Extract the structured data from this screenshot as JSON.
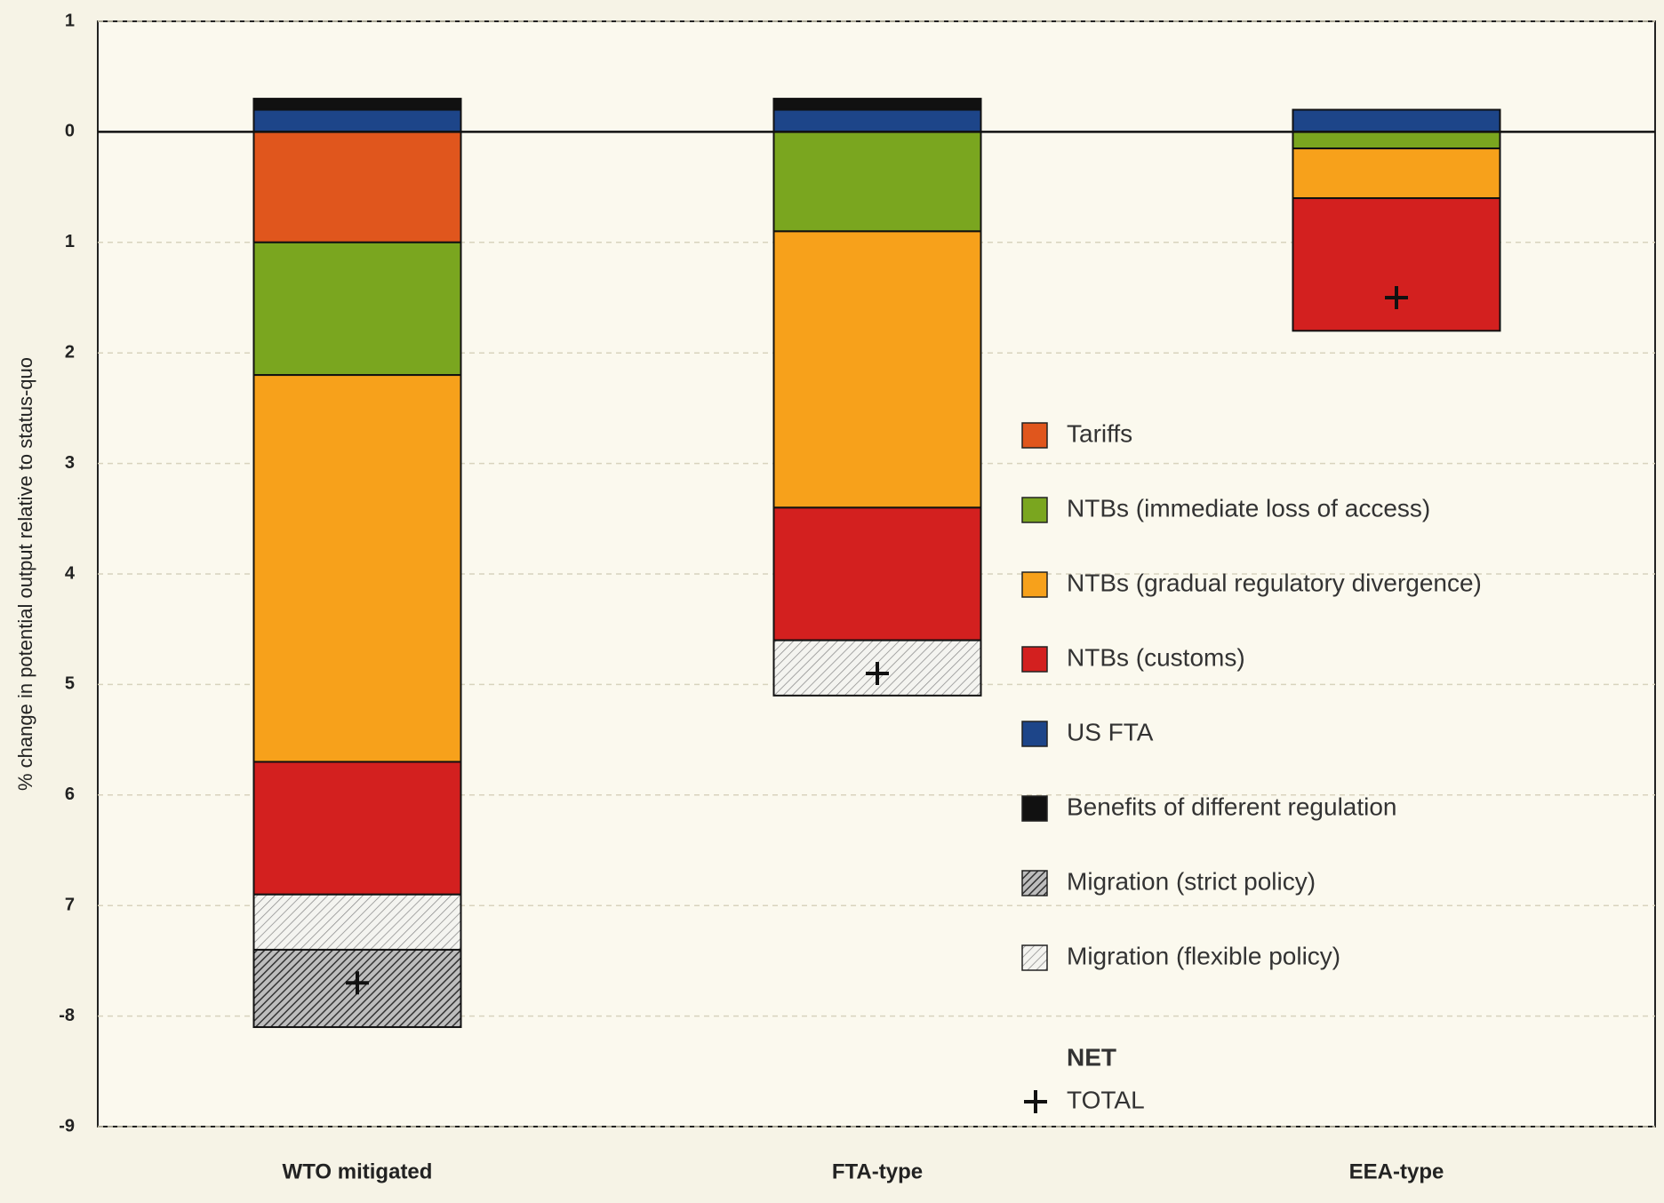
{
  "chart_data": {
    "type": "stacked_bar",
    "ylabel": "% change in potential output relative to status-quo",
    "categories": [
      "WTO mitigated",
      "FTA-type",
      "EEA-type"
    ],
    "series": [
      {
        "name": "Tariffs",
        "color": "#e0561d",
        "values": [
          -1.0,
          0,
          0
        ]
      },
      {
        "name": "NTBs (immediate loss of access)",
        "color": "#7aa61f",
        "values": [
          -1.2,
          -0.9,
          -0.15
        ]
      },
      {
        "name": "NTBs (gradual regulatory divergence)",
        "color": "#f7a11b",
        "values": [
          -3.5,
          -2.5,
          -0.45
        ]
      },
      {
        "name": "NTBs (customs)",
        "color": "#d3201f",
        "values": [
          -1.2,
          -1.2,
          -1.2
        ]
      },
      {
        "name": "US FTA",
        "color": "#1d4589",
        "values": [
          0.2,
          0.2,
          0.2
        ]
      },
      {
        "name": "Benefits of different regulation",
        "color": "#111111",
        "values": [
          0.1,
          0.1,
          0
        ]
      },
      {
        "name": "Migration (strict policy)",
        "color": "#555555",
        "hatch": "dense",
        "values": [
          -0.7,
          0,
          0
        ]
      },
      {
        "name": "Migration (flexible policy)",
        "color": "#9a9a9a",
        "hatch": "light",
        "values": [
          -0.5,
          -0.5,
          0
        ]
      }
    ],
    "total": {
      "name": [
        "NET",
        "TOTAL"
      ],
      "values": [
        -7.7,
        -4.9,
        -1.5
      ]
    },
    "ylim": [
      -9,
      1
    ],
    "yticks": [
      {
        "value": 1,
        "label": "1"
      },
      0,
      {
        "value": -1,
        "label": "1"
      },
      {
        "value": -2,
        "label": "2"
      },
      {
        "value": -3,
        "label": "3"
      },
      {
        "value": -4,
        "label": "4"
      },
      {
        "value": -5,
        "label": "5"
      },
      {
        "value": -6,
        "label": "6"
      },
      {
        "value": -7,
        "label": "7"
      },
      -8,
      -9
    ],
    "grid": true
  }
}
